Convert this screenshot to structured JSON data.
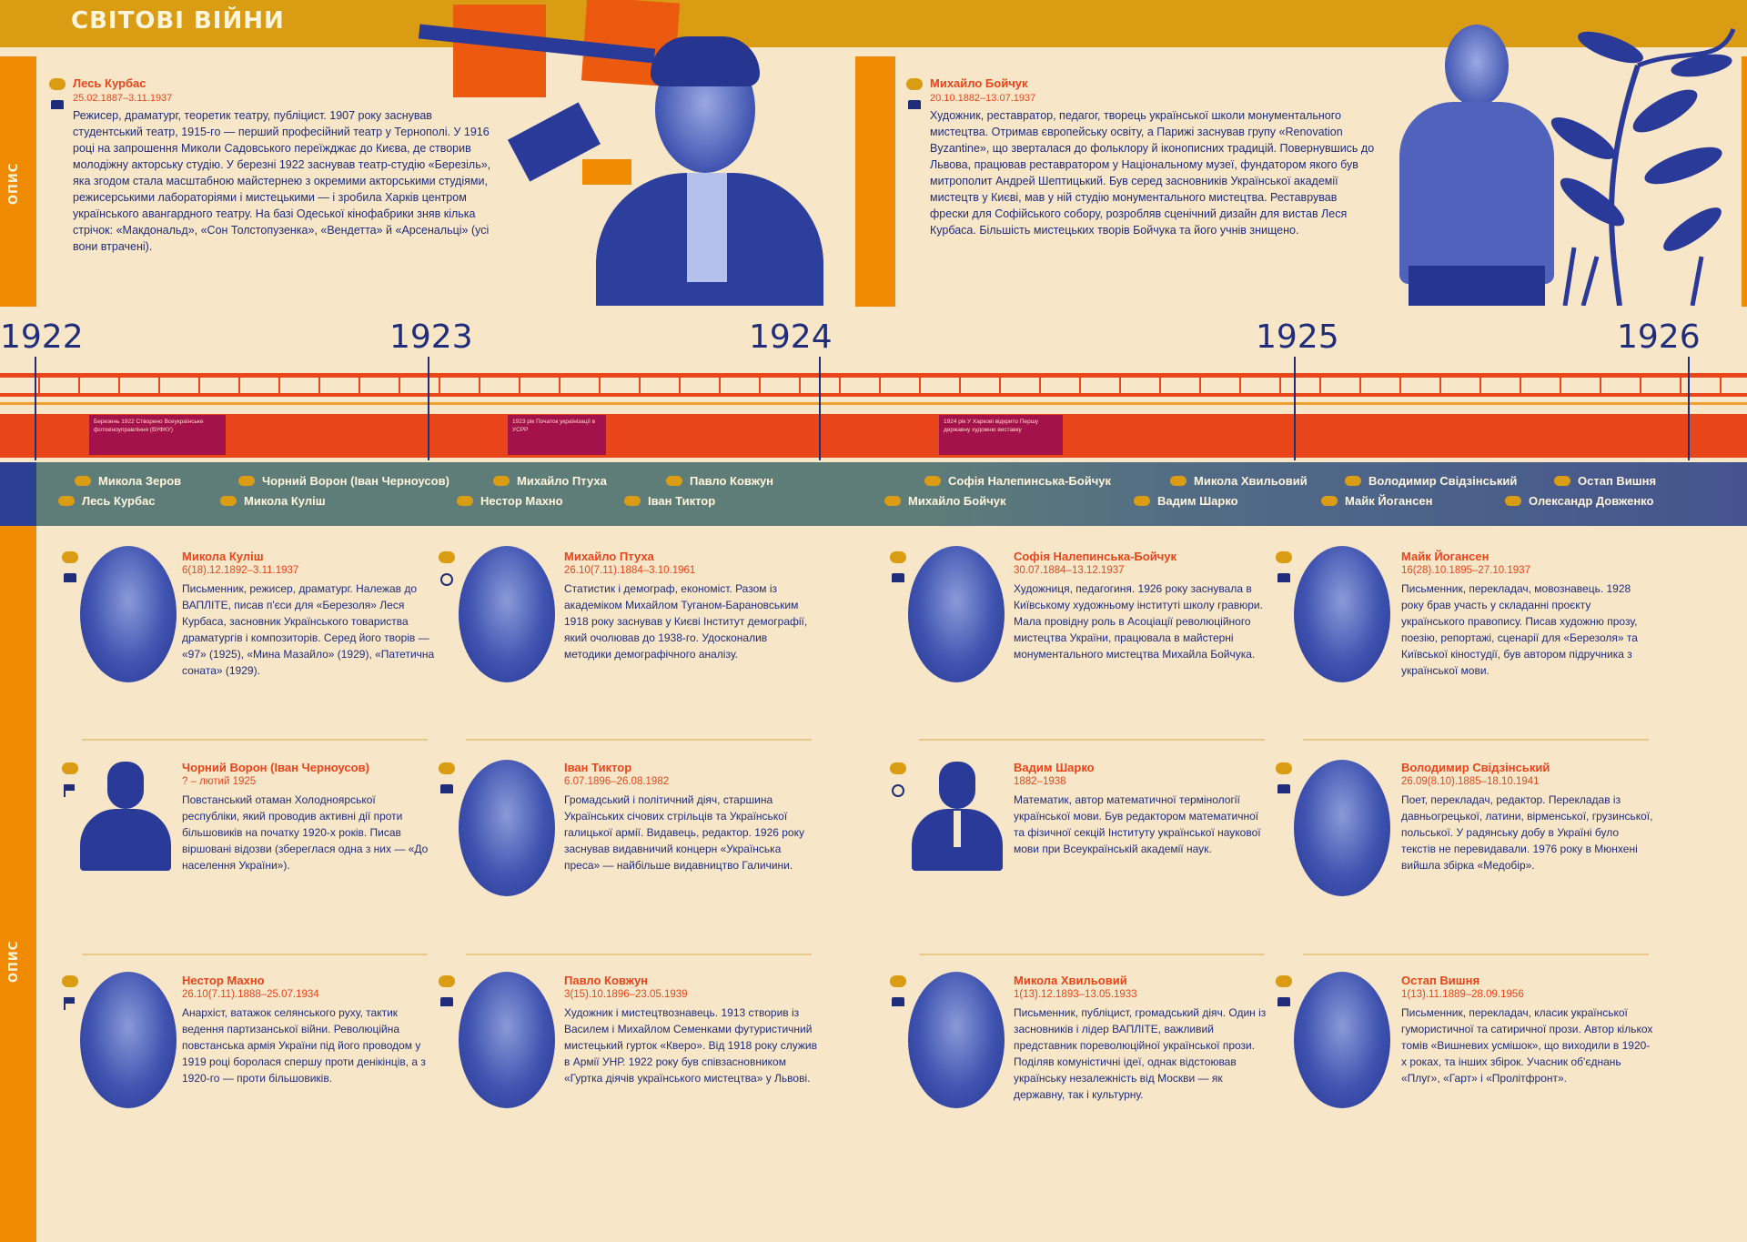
{
  "header": {
    "title": "СВІТОВІ ВІЙНИ"
  },
  "side_labels": {
    "top": "ОПИС",
    "bottom": "ОПИС"
  },
  "featured": [
    {
      "name": "Лесь Курбас",
      "dates": "25.02.1887–3.11.1937",
      "desc": "Режисер, драматург, теоретик театру, публіцист. 1907 року заснував студентський театр, 1915-го — перший професійний театр у Тернополі. У 1916 році на запрошення Миколи Садовського переїжджає до Києва, де створив молодіжну акторську студію. У березні 1922 заснував театр-студію «Березіль», яка згодом стала масштабною майстернею з окремими акторськими студіями, режисерськими лабораторіями і мистецькими — і зробила Харків центром українського авангардного театру. На базі Одеської кінофабрики зняв кілька стрічок: «Макдональд», «Сон Толстопузенка», «Вендетта» й «Арсенальці» (усі вони втрачені)."
    },
    {
      "name": "Михайло Бойчук",
      "dates": "20.10.1882–13.07.1937",
      "desc": "Художник, реставратор, педагог, творець української школи монументального мистецтва. Отримав європейську освіту, а Парижі заснував групу «Renovation Byzantine», що зверталася до фольклору й іконописних традицій. Повернувшись до Львова, працював реставратором у Національному музеї, фундатором якого був митрополит Андрей Шептицький. Був серед засновників Української академії мистецтв у Києві, мав у ній студію монументального мистецтва. Реставрував фрески для Софійського собору, розробляв сценічний дизайн для вистав Леся Курбаса. Більшість мистецьких творів Бойчука та його учнів знищено."
    }
  ],
  "timeline": {
    "years": [
      "1922",
      "1923",
      "1924",
      "1925",
      "1926"
    ],
    "events": [
      {
        "text": "Березень 1922 Створено Всеукраїнське фотокіноуправління (ВУФКУ)"
      },
      {
        "text": "1923 рік Початок українізації в УСРР"
      },
      {
        "text": "1924 рік У Харкові відкрито Першу державну художню виставку"
      }
    ],
    "names_row1": [
      "Микола Зеров",
      "Чорний Ворон (Іван Черноусов)",
      "Михайло Птуха",
      "Павло Ковжун",
      "Софія Налепинська-Бойчук",
      "Микола Хвильовий",
      "Володимир Свідзінський",
      "Остап Вишня"
    ],
    "names_row2": [
      "Лесь Курбас",
      "Микола Куліш",
      "Нестор Махно",
      "Іван Тиктор",
      "Михайло Бойчук",
      "Вадим Шарко",
      "Майк Йогансен",
      "Олександр Довженко"
    ]
  },
  "people": [
    {
      "name": "Микола Куліш",
      "dates": "6(18).12.1892–3.11.1937",
      "desc": "Письменник, режисер, драматург. Належав до ВАПЛІТЕ, писав п'єси для «Березоля» Леся Курбаса, засновник Українського товариства драматургів і композиторів. Серед його творів — «97» (1925), «Мина Мазайло» (1929), «Патетична соната» (1929)."
    },
    {
      "name": "Михайло Птуха",
      "dates": "26.10(7.11).1884–3.10.1961",
      "desc": "Статистик і демограф, економіст. Разом із академіком Михайлом Туганом-Барановським 1918 року заснував у Києві Інститут демографії, який очолював до 1938-го. Удосконалив методики демографічного аналізу."
    },
    {
      "name": "Софія Налепинська-Бойчук",
      "dates": "30.07.1884–13.12.1937",
      "desc": "Художниця, педагогиня. 1926 року заснувала в Київському художньому інституті школу гравюри. Мала провідну роль в Асоціації революційного мистецтва України, працювала в майстерні монументального мистецтва Михайла Бойчука."
    },
    {
      "name": "Майк Йогансен",
      "dates": "16(28).10.1895–27.10.1937",
      "desc": "Письменник, перекладач, мовознавець. 1928 року брав участь у складанні проєкту українського правопису. Писав художню прозу, поезію, репортажі, сценарії для «Березоля» та Київської кіностудії, був автором підручника з української мови."
    },
    {
      "name": "Чорний Ворон (Іван Черноусов)",
      "dates": "? – лютий 1925",
      "desc": "Повстанський отаман Холодноярської республіки, який проводив активні дії проти більшовиків на початку 1920-х років. Писав віршовані відозви (збереглася одна з них — «До населення України»)."
    },
    {
      "name": "Іван Тиктор",
      "dates": "6.07.1896–26.08.1982",
      "desc": "Громадський і політичний діяч, старшина Українських січових стрільців та Української галицької армії. Видавець, редактор. 1926 року заснував видавничий концерн «Українська преса» — найбільше видавництво Галичини."
    },
    {
      "name": "Вадим Шарко",
      "dates": "1882–1938",
      "desc": "Математик, автор математичної термінології української мови. Був редактором математичної та фізичної секцій Інституту української наукової мови при Всеукраїнській академії наук."
    },
    {
      "name": "Володимир Свідзінський",
      "dates": "26.09(8.10).1885–18.10.1941",
      "desc": "Поет, перекладач, редактор. Перекладав із давньогрецької, латини, вірменської, грузинської, польської. У радянську добу в Україні було текстів не перевидавали. 1976 року в Мюнхені вийшла збірка «Медобір»."
    },
    {
      "name": "Нестор Махно",
      "dates": "26.10(7.11).1888–25.07.1934",
      "desc": "Анархіст, ватажок селянського руху, тактик ведення партизанської війни. Революційна повстанська армія України під його проводом у 1919 році боролася спершу проти денікінців, а з 1920-го — проти більшовиків."
    },
    {
      "name": "Павло Ковжун",
      "dates": "3(15).10.1896–23.05.1939",
      "desc": "Художник і мистецтвознавець. 1913 створив із Василем і Михайлом Семенками футуристичний мистецький гурток «Кверо». Від 1918 року служив в Армії УНР. 1922 року був співзасновником «Гуртка діячів українського мистецтва» у Львові."
    },
    {
      "name": "Микола Хвильовий",
      "dates": "1(13).12.1893–13.05.1933",
      "desc": "Письменник, публіцист, громадський діяч. Один із засновників і лідер ВАПЛІТЕ, важливий представник пореволюційної української прози. Поділяв комуністичні ідеї, однак відстоював українську незалежність від Москви — як державну, так і культурну."
    },
    {
      "name": "Остап Вишня",
      "dates": "1(13).11.1889–28.09.1956",
      "desc": "Письменник, перекладач, класик української гумористичної та сатиричної прози. Автор кількох томів «Вишневих усмішок», що виходили в 1920-х роках, та інших збірок. Учасник об'єднань «Плуг», «Гарт» і «Пролітфронт»."
    }
  ]
}
